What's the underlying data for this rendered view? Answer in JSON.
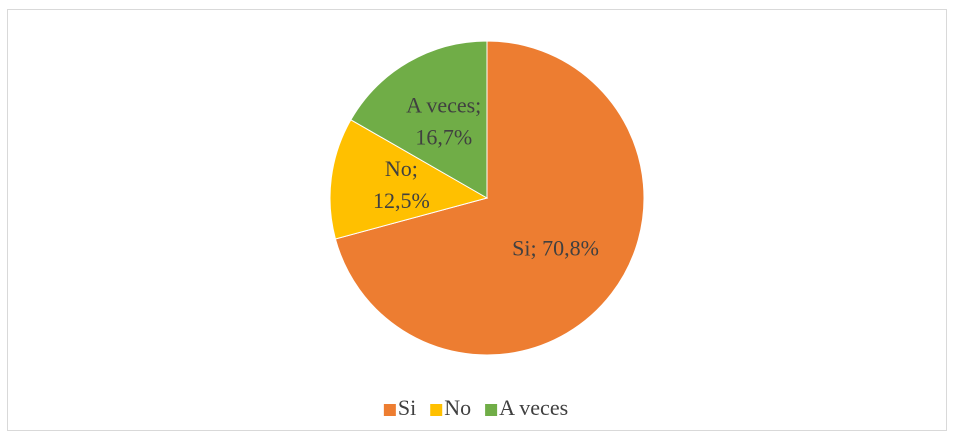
{
  "chart_data": {
    "type": "pie",
    "categories": [
      "Si",
      "No",
      "A veces"
    ],
    "values": [
      70.8,
      12.5,
      16.7
    ],
    "value_labels": [
      "Si; 70,8%",
      "No; 12,5%",
      "A veces; 16,7%"
    ],
    "colors": [
      "#ed7d31",
      "#ffc000",
      "#70ad47"
    ],
    "legend": "bottom"
  }
}
